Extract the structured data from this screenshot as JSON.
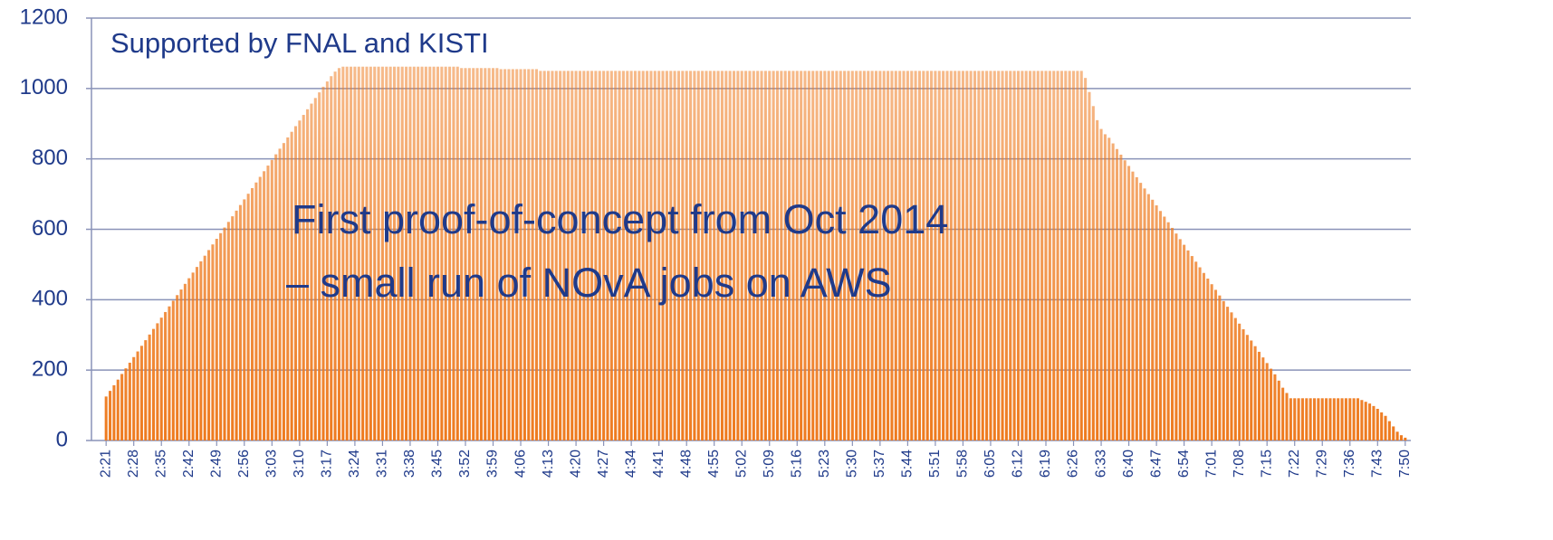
{
  "chart_data": {
    "type": "bar",
    "title": "Supported by FNAL and KISTI",
    "annotations": [
      "First proof-of-concept from Oct 2014",
      "– small run of NOvA jobs on AWS"
    ],
    "color": "#ee7a1e",
    "ylim": [
      0,
      1200
    ],
    "yticks": [
      0,
      200,
      400,
      600,
      800,
      1000,
      1200
    ],
    "grid": true,
    "categories": [
      "2:21",
      null,
      null,
      null,
      null,
      null,
      null,
      "2:28",
      null,
      null,
      null,
      null,
      null,
      null,
      "2:35",
      null,
      null,
      null,
      null,
      null,
      null,
      "2:42",
      null,
      null,
      null,
      null,
      null,
      null,
      "2:49",
      null,
      null,
      null,
      null,
      null,
      null,
      "2:56",
      null,
      null,
      null,
      null,
      null,
      null,
      "3:03",
      null,
      null,
      null,
      null,
      null,
      null,
      "3:10",
      null,
      null,
      null,
      null,
      null,
      null,
      "3:17",
      null,
      null,
      null,
      null,
      null,
      null,
      "3:24",
      null,
      null,
      null,
      null,
      null,
      null,
      "3:31",
      null,
      null,
      null,
      null,
      null,
      null,
      "3:38",
      null,
      null,
      null,
      null,
      null,
      null,
      "3:45",
      null,
      null,
      null,
      null,
      null,
      null,
      "3:52",
      null,
      null,
      null,
      null,
      null,
      null,
      "3:59",
      null,
      null,
      null,
      null,
      null,
      null,
      "4:06",
      null,
      null,
      null,
      null,
      null,
      null,
      "4:13",
      null,
      null,
      null,
      null,
      null,
      null,
      "4:20",
      null,
      null,
      null,
      null,
      null,
      null,
      "4:27",
      null,
      null,
      null,
      null,
      null,
      null,
      "4:34",
      null,
      null,
      null,
      null,
      null,
      null,
      "4:41",
      null,
      null,
      null,
      null,
      null,
      null,
      "4:48",
      null,
      null,
      null,
      null,
      null,
      null,
      "4:55",
      null,
      null,
      null,
      null,
      null,
      null,
      "5:02",
      null,
      null,
      null,
      null,
      null,
      null,
      "5:09",
      null,
      null,
      null,
      null,
      null,
      null,
      "5:16",
      null,
      null,
      null,
      null,
      null,
      null,
      "5:23",
      null,
      null,
      null,
      null,
      null,
      null,
      "5:30",
      null,
      null,
      null,
      null,
      null,
      null,
      "5:37",
      null,
      null,
      null,
      null,
      null,
      null,
      "5:44",
      null,
      null,
      null,
      null,
      null,
      null,
      "5:51",
      null,
      null,
      null,
      null,
      null,
      null,
      "5:58",
      null,
      null,
      null,
      null,
      null,
      null,
      "6:05",
      null,
      null,
      null,
      null,
      null,
      null,
      "6:12",
      null,
      null,
      null,
      null,
      null,
      null,
      "6:19",
      null,
      null,
      null,
      null,
      null,
      null,
      "6:26",
      null,
      null,
      null,
      null,
      null,
      null,
      "6:33",
      null,
      null,
      null,
      null,
      null,
      null,
      "6:40",
      null,
      null,
      null,
      null,
      null,
      null,
      "6:47",
      null,
      null,
      null,
      null,
      null,
      null,
      "6:54",
      null,
      null,
      null,
      null,
      null,
      null,
      "7:01",
      null,
      null,
      null,
      null,
      null,
      null,
      "7:08",
      null,
      null,
      null,
      null,
      null,
      null,
      "7:15",
      null,
      null,
      null,
      null,
      null,
      null,
      "7:22",
      null,
      null,
      null,
      null,
      null,
      null,
      "7:29",
      null,
      null,
      null,
      null,
      null,
      null,
      "7:36",
      null,
      null,
      null,
      null,
      null,
      null,
      "7:43",
      null,
      null,
      null,
      null,
      null,
      null,
      "7:50"
    ],
    "values": [
      125,
      141,
      157,
      173,
      189,
      205,
      221,
      237,
      253,
      269,
      285,
      301,
      317,
      333,
      349,
      365,
      381,
      397,
      413,
      429,
      445,
      461,
      477,
      493,
      509,
      525,
      541,
      557,
      573,
      589,
      605,
      621,
      637,
      653,
      669,
      685,
      701,
      717,
      733,
      749,
      765,
      781,
      797,
      813,
      829,
      845,
      861,
      877,
      893,
      909,
      925,
      941,
      957,
      973,
      989,
      1005,
      1020,
      1035,
      1048,
      1058,
      1062,
      1062,
      1062,
      1062,
      1062,
      1062,
      1062,
      1062,
      1062,
      1062,
      1062,
      1062,
      1062,
      1062,
      1062,
      1062,
      1062,
      1062,
      1062,
      1062,
      1062,
      1062,
      1062,
      1062,
      1062,
      1062,
      1062,
      1062,
      1062,
      1062,
      1058,
      1058,
      1058,
      1058,
      1058,
      1058,
      1058,
      1058,
      1058,
      1058,
      1055,
      1055,
      1055,
      1055,
      1055,
      1055,
      1055,
      1055,
      1055,
      1055,
      1050,
      1050,
      1050,
      1050,
      1050,
      1050,
      1050,
      1050,
      1050,
      1050,
      1050,
      1050,
      1050,
      1050,
      1050,
      1050,
      1050,
      1050,
      1050,
      1050,
      1050,
      1050,
      1050,
      1050,
      1050,
      1050,
      1050,
      1050,
      1050,
      1050,
      1050,
      1050,
      1050,
      1050,
      1050,
      1050,
      1050,
      1050,
      1050,
      1050,
      1050,
      1050,
      1050,
      1050,
      1050,
      1050,
      1050,
      1050,
      1050,
      1050,
      1050,
      1050,
      1050,
      1050,
      1050,
      1050,
      1050,
      1050,
      1050,
      1050,
      1050,
      1050,
      1050,
      1050,
      1050,
      1050,
      1050,
      1050,
      1050,
      1050,
      1050,
      1050,
      1050,
      1050,
      1050,
      1050,
      1050,
      1050,
      1050,
      1050,
      1050,
      1050,
      1050,
      1050,
      1050,
      1050,
      1050,
      1050,
      1050,
      1050,
      1050,
      1050,
      1050,
      1050,
      1050,
      1050,
      1050,
      1050,
      1050,
      1050,
      1050,
      1050,
      1050,
      1050,
      1050,
      1050,
      1050,
      1050,
      1050,
      1050,
      1050,
      1050,
      1050,
      1050,
      1050,
      1050,
      1050,
      1050,
      1050,
      1050,
      1050,
      1050,
      1050,
      1050,
      1050,
      1050,
      1050,
      1050,
      1050,
      1050,
      1050,
      1050,
      1050,
      1050,
      1050,
      1050,
      1050,
      1050,
      1030,
      990,
      950,
      910,
      885,
      870,
      860,
      844,
      828,
      812,
      796,
      780,
      764,
      748,
      732,
      716,
      700,
      684,
      668,
      652,
      636,
      620,
      604,
      588,
      572,
      556,
      540,
      524,
      508,
      492,
      476,
      460,
      444,
      428,
      412,
      396,
      380,
      364,
      348,
      332,
      316,
      300,
      284,
      268,
      252,
      236,
      220,
      204,
      188,
      170,
      150,
      135,
      120,
      120,
      120,
      120,
      120,
      120,
      120,
      120,
      120,
      120,
      120,
      120,
      120,
      120,
      120,
      120,
      120,
      120,
      115,
      110,
      105,
      98,
      90,
      80,
      70,
      55,
      40,
      25,
      15,
      8
    ]
  }
}
